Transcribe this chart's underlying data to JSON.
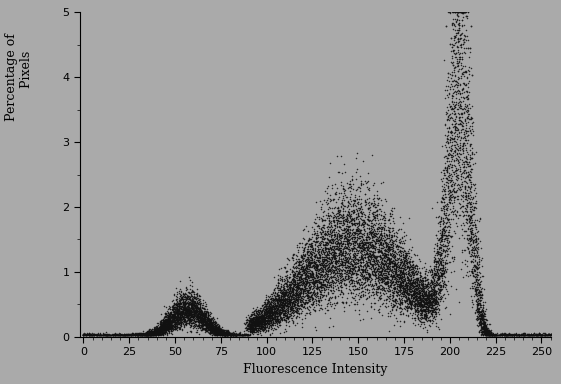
{
  "background_color": "#aaaaaa",
  "plot_bg_color": "#aaaaaa",
  "dot_color": "#111111",
  "xlabel": "Fluorescence Intensity",
  "ylabel": "Percentage of\n    Pixels",
  "xlim": [
    -2,
    255
  ],
  "ylim": [
    0,
    5
  ],
  "xticks": [
    0,
    25,
    50,
    75,
    100,
    125,
    150,
    175,
    200,
    225,
    250
  ],
  "yticks": [
    0,
    1,
    2,
    3,
    4,
    5
  ],
  "figsize": [
    5.61,
    3.84
  ],
  "dpi": 100,
  "seed": 7,
  "dot_size": 1.2,
  "dot_alpha": 0.85
}
